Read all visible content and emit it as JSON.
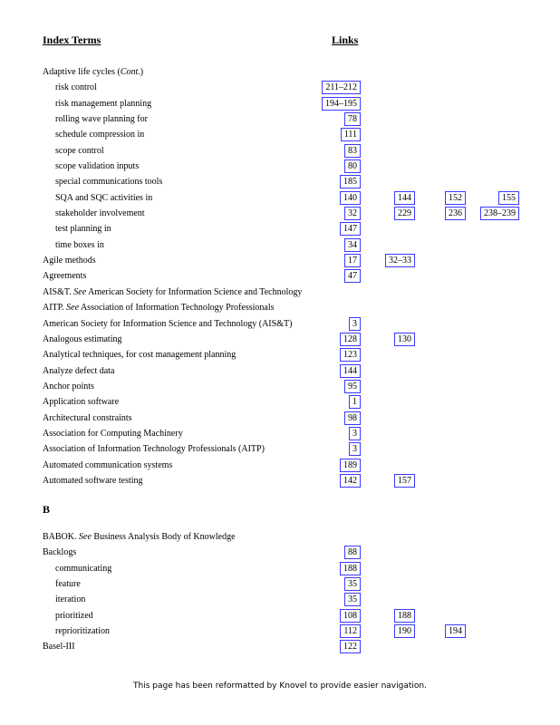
{
  "headers": {
    "terms": "Index Terms",
    "links": "Links"
  },
  "section_a": [
    {
      "term": "Adaptive life cycles ",
      "term_italic": "Cont.",
      "paren": true,
      "sub": false,
      "links": []
    },
    {
      "term": "risk control",
      "sub": true,
      "links": [
        "211–212"
      ]
    },
    {
      "term": "risk management planning",
      "sub": true,
      "links": [
        "194–195"
      ]
    },
    {
      "term": "rolling wave planning for",
      "sub": true,
      "links": [
        "78"
      ]
    },
    {
      "term": "schedule compression in",
      "sub": true,
      "links": [
        "111"
      ]
    },
    {
      "term": "scope control",
      "sub": true,
      "links": [
        "83"
      ]
    },
    {
      "term": "scope validation inputs",
      "sub": true,
      "links": [
        "80"
      ]
    },
    {
      "term": "special communications tools",
      "sub": true,
      "links": [
        "185"
      ]
    },
    {
      "term": "SQA and SQC activities in",
      "sub": true,
      "links": [
        "140",
        "144",
        "152",
        "155"
      ]
    },
    {
      "term": "stakeholder involvement",
      "sub": true,
      "links": [
        "32",
        "229",
        "236",
        "238–239"
      ]
    },
    {
      "term": "test planning in",
      "sub": true,
      "links": [
        "147"
      ]
    },
    {
      "term": "time boxes in",
      "sub": true,
      "links": [
        "34"
      ]
    },
    {
      "term": "Agile methods",
      "sub": false,
      "links": [
        "17",
        "32–33"
      ]
    },
    {
      "term": "Agreements",
      "sub": false,
      "links": [
        "47"
      ]
    },
    {
      "term": "AIS&T. ",
      "see": "See",
      "see_target": " American Society for Information Science and Technology",
      "sub": false,
      "links": []
    },
    {
      "term": "AITP. ",
      "see": "See",
      "see_target": " Association of Information Technology Professionals",
      "sub": false,
      "links": []
    },
    {
      "term": "American Society for Information Science and Technology (AIS&T)",
      "sub": false,
      "links": [
        "3"
      ]
    },
    {
      "term": "Analogous estimating",
      "sub": false,
      "links": [
        "128",
        "130"
      ]
    },
    {
      "term": "Analytical techniques, for cost management planning",
      "sub": false,
      "links": [
        "123"
      ]
    },
    {
      "term": "Analyze defect data",
      "sub": false,
      "links": [
        "144"
      ]
    },
    {
      "term": "Anchor points",
      "sub": false,
      "links": [
        "95"
      ]
    },
    {
      "term": "Application software",
      "sub": false,
      "links": [
        "1"
      ]
    },
    {
      "term": "Architectural constraints",
      "sub": false,
      "links": [
        "98"
      ]
    },
    {
      "term": "Association for Computing Machinery",
      "sub": false,
      "links": [
        "3"
      ]
    },
    {
      "term": "Association of Information Technology Professionals (AITP)",
      "sub": false,
      "links": [
        "3"
      ]
    },
    {
      "term": "Automated communication systems",
      "sub": false,
      "links": [
        "189"
      ]
    },
    {
      "term": "Automated software testing",
      "sub": false,
      "links": [
        "142",
        "157"
      ]
    }
  ],
  "letter_b": "B",
  "section_b": [
    {
      "term": "BABOK. ",
      "see": "See",
      "see_target": " Business Analysis Body of Knowledge",
      "sub": false,
      "links": []
    },
    {
      "term": "Backlogs",
      "sub": false,
      "links": [
        "88"
      ]
    },
    {
      "term": "communicating",
      "sub": true,
      "links": [
        "188"
      ]
    },
    {
      "term": "feature",
      "sub": true,
      "links": [
        "35"
      ]
    },
    {
      "term": "iteration",
      "sub": true,
      "links": [
        "35"
      ]
    },
    {
      "term": "prioritized",
      "sub": true,
      "links": [
        "108",
        "188"
      ]
    },
    {
      "term": "reprioritization",
      "sub": true,
      "links": [
        "112",
        "190",
        "194"
      ]
    },
    {
      "term": "Basel-III",
      "sub": false,
      "links": [
        "122"
      ]
    }
  ],
  "footer": "This page has been reformatted by Knovel to provide easier navigation.",
  "colors": {
    "link_border": "#3a3aff"
  }
}
